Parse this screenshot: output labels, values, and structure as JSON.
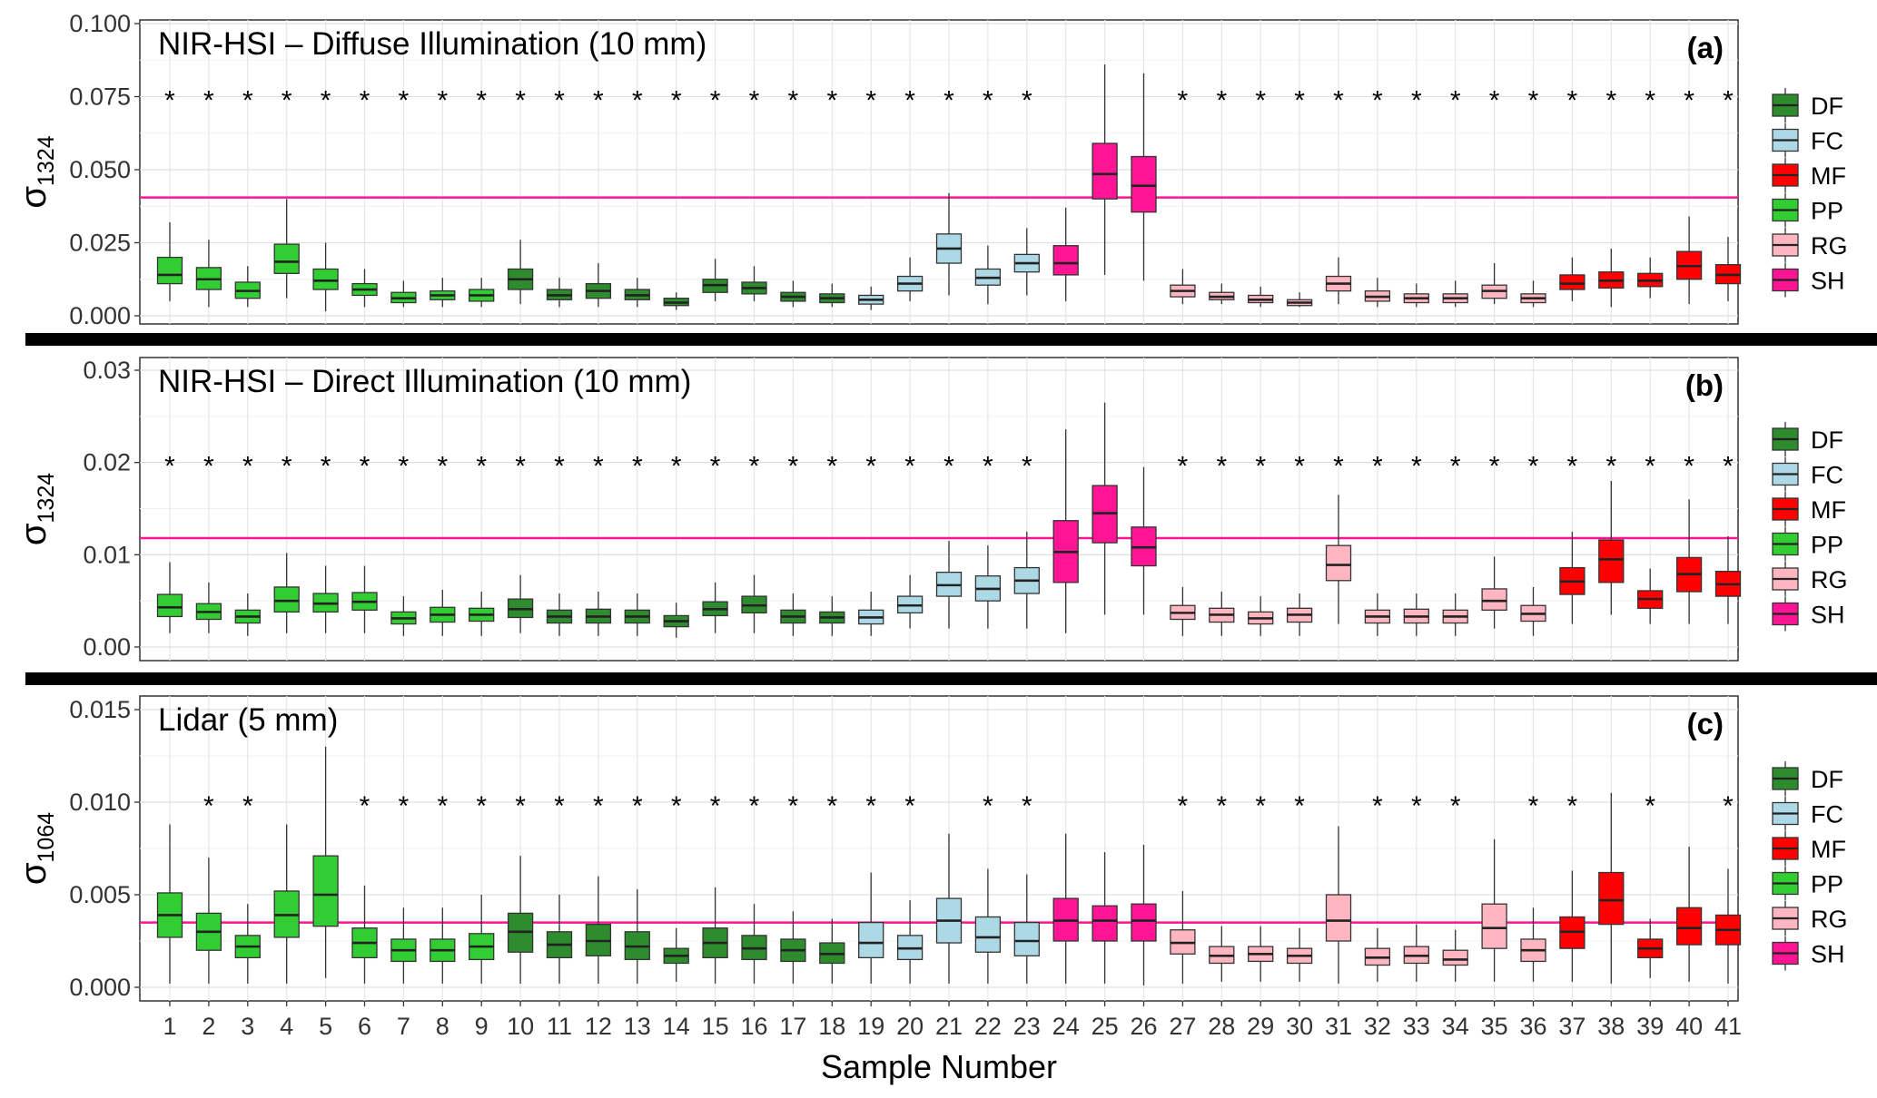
{
  "colors": {
    "DF": "#2e8b2e",
    "FC": "#add8e6",
    "MF": "#ff0000",
    "PP": "#32cd32",
    "RG": "#ffb6c1",
    "SH": "#ff1493",
    "reference_line": "#ff1493"
  },
  "chart_data": {
    "type": "boxplot",
    "xlabel": "Sample Number",
    "categories": [
      "1",
      "2",
      "3",
      "4",
      "5",
      "6",
      "7",
      "8",
      "9",
      "10",
      "11",
      "12",
      "13",
      "14",
      "15",
      "16",
      "17",
      "18",
      "19",
      "20",
      "21",
      "22",
      "23",
      "24",
      "25",
      "26",
      "27",
      "28",
      "29",
      "30",
      "31",
      "32",
      "33",
      "34",
      "35",
      "36",
      "37",
      "38",
      "39",
      "40",
      "41"
    ],
    "sample_groups": [
      "PP",
      "PP",
      "PP",
      "PP",
      "PP",
      "PP",
      "PP",
      "PP",
      "PP",
      "DF",
      "DF",
      "DF",
      "DF",
      "DF",
      "DF",
      "DF",
      "DF",
      "DF",
      "FC",
      "FC",
      "FC",
      "FC",
      "FC",
      "SH",
      "SH",
      "SH",
      "RG",
      "RG",
      "RG",
      "RG",
      "RG",
      "RG",
      "RG",
      "RG",
      "RG",
      "RG",
      "MF",
      "MF",
      "MF",
      "MF",
      "MF"
    ],
    "legend": {
      "position": "right",
      "entries": [
        "DF",
        "FC",
        "MF",
        "PP",
        "RG",
        "SH"
      ]
    },
    "grid": true,
    "panels": [
      {
        "title": "NIR-HSI – Diffuse Illumination (10 mm)",
        "letter": "(a)",
        "ylabel_base": "σ",
        "ylabel_sub": "1324",
        "ylim": [
          0,
          0.1
        ],
        "yticks": [
          "0.000",
          "0.025",
          "0.050",
          "0.075",
          "0.100"
        ],
        "reference_line": 0.0405,
        "star_level": 0.075,
        "significant": [
          "1",
          "2",
          "3",
          "4",
          "5",
          "6",
          "7",
          "8",
          "9",
          "10",
          "11",
          "12",
          "13",
          "14",
          "15",
          "16",
          "17",
          "18",
          "19",
          "20",
          "21",
          "22",
          "23",
          "27",
          "28",
          "29",
          "30",
          "31",
          "32",
          "33",
          "34",
          "35",
          "36",
          "37",
          "38",
          "39",
          "40",
          "41"
        ],
        "boxes": [
          [
            0.005,
            0.011,
            0.014,
            0.02,
            0.032
          ],
          [
            0.003,
            0.009,
            0.0125,
            0.0165,
            0.026
          ],
          [
            0.003,
            0.006,
            0.0085,
            0.0115,
            0.017
          ],
          [
            0.006,
            0.0145,
            0.0185,
            0.0245,
            0.04
          ],
          [
            0.0015,
            0.009,
            0.012,
            0.016,
            0.025
          ],
          [
            0.003,
            0.007,
            0.009,
            0.011,
            0.016
          ],
          [
            0.003,
            0.0045,
            0.006,
            0.008,
            0.012
          ],
          [
            0.003,
            0.0055,
            0.007,
            0.0085,
            0.013
          ],
          [
            0.003,
            0.005,
            0.007,
            0.009,
            0.013
          ],
          [
            0.004,
            0.009,
            0.0125,
            0.016,
            0.026
          ],
          [
            0.003,
            0.0055,
            0.007,
            0.009,
            0.013
          ],
          [
            0.003,
            0.006,
            0.0085,
            0.011,
            0.018
          ],
          [
            0.003,
            0.0055,
            0.007,
            0.009,
            0.013
          ],
          [
            0.002,
            0.0035,
            0.0045,
            0.006,
            0.008
          ],
          [
            0.005,
            0.008,
            0.0105,
            0.0125,
            0.0195
          ],
          [
            0.005,
            0.0075,
            0.0095,
            0.0115,
            0.017
          ],
          [
            0.003,
            0.005,
            0.0065,
            0.008,
            0.012
          ],
          [
            0.003,
            0.0045,
            0.006,
            0.0075,
            0.011
          ],
          [
            0.002,
            0.004,
            0.0055,
            0.007,
            0.01
          ],
          [
            0.005,
            0.0085,
            0.011,
            0.0135,
            0.02
          ],
          [
            0.007,
            0.018,
            0.023,
            0.028,
            0.042
          ],
          [
            0.004,
            0.0105,
            0.013,
            0.016,
            0.024
          ],
          [
            0.007,
            0.015,
            0.018,
            0.021,
            0.03
          ],
          [
            0.005,
            0.014,
            0.018,
            0.024,
            0.037
          ],
          [
            0.014,
            0.04,
            0.0485,
            0.059,
            0.086
          ],
          [
            0.012,
            0.0355,
            0.0445,
            0.0545,
            0.083
          ],
          [
            0.004,
            0.0065,
            0.0085,
            0.0105,
            0.016
          ],
          [
            0.004,
            0.0055,
            0.0065,
            0.008,
            0.011
          ],
          [
            0.003,
            0.0045,
            0.0055,
            0.007,
            0.01
          ],
          [
            0.003,
            0.0035,
            0.0045,
            0.0055,
            0.008
          ],
          [
            0.004,
            0.0085,
            0.011,
            0.0135,
            0.02
          ],
          [
            0.003,
            0.005,
            0.0065,
            0.0085,
            0.013
          ],
          [
            0.003,
            0.0045,
            0.006,
            0.0075,
            0.011
          ],
          [
            0.003,
            0.0045,
            0.006,
            0.0075,
            0.012
          ],
          [
            0.004,
            0.006,
            0.0085,
            0.0105,
            0.018
          ],
          [
            0.003,
            0.0045,
            0.006,
            0.0075,
            0.012
          ],
          [
            0.005,
            0.009,
            0.011,
            0.014,
            0.02
          ],
          [
            0.003,
            0.0095,
            0.012,
            0.015,
            0.023
          ],
          [
            0.006,
            0.01,
            0.012,
            0.0145,
            0.02
          ],
          [
            0.004,
            0.0125,
            0.017,
            0.022,
            0.034
          ],
          [
            0.005,
            0.011,
            0.014,
            0.0175,
            0.027
          ]
        ]
      },
      {
        "title": "NIR-HSI – Direct Illumination (10 mm)",
        "letter": "(b)",
        "ylabel_base": "σ",
        "ylabel_sub": "1324",
        "ylim": [
          -0.0003,
          0.0305
        ],
        "yticks": [
          "0.00",
          "0.01",
          "0.02",
          "0.03"
        ],
        "reference_line": 0.0118,
        "star_level": 0.02,
        "significant": [
          "1",
          "2",
          "3",
          "4",
          "5",
          "6",
          "7",
          "8",
          "9",
          "10",
          "11",
          "12",
          "13",
          "14",
          "15",
          "16",
          "17",
          "18",
          "19",
          "20",
          "21",
          "22",
          "23",
          "27",
          "28",
          "29",
          "30",
          "31",
          "32",
          "33",
          "34",
          "35",
          "36",
          "37",
          "38",
          "39",
          "40",
          "41"
        ],
        "boxes": [
          [
            0.0015,
            0.0033,
            0.0043,
            0.0057,
            0.0092
          ],
          [
            0.0015,
            0.003,
            0.0038,
            0.0047,
            0.007
          ],
          [
            0.0012,
            0.0026,
            0.0033,
            0.004,
            0.0058
          ],
          [
            0.0015,
            0.0038,
            0.005,
            0.0065,
            0.0102
          ],
          [
            0.0015,
            0.0038,
            0.0047,
            0.0058,
            0.0088
          ],
          [
            0.0015,
            0.004,
            0.0049,
            0.0059,
            0.0088
          ],
          [
            0.0012,
            0.0025,
            0.0031,
            0.0038,
            0.0055
          ],
          [
            0.0012,
            0.0027,
            0.0035,
            0.0043,
            0.0062
          ],
          [
            0.0012,
            0.0028,
            0.0035,
            0.0042,
            0.006
          ],
          [
            0.0015,
            0.0032,
            0.0041,
            0.0052,
            0.0078
          ],
          [
            0.0012,
            0.0026,
            0.0033,
            0.004,
            0.0058
          ],
          [
            0.0012,
            0.0026,
            0.0033,
            0.0041,
            0.006
          ],
          [
            0.0012,
            0.0026,
            0.0033,
            0.004,
            0.0058
          ],
          [
            0.001,
            0.0022,
            0.0028,
            0.0034,
            0.0048
          ],
          [
            0.0015,
            0.0034,
            0.0041,
            0.0049,
            0.007
          ],
          [
            0.0015,
            0.0037,
            0.0045,
            0.0055,
            0.0078
          ],
          [
            0.0012,
            0.0026,
            0.0033,
            0.004,
            0.0058
          ],
          [
            0.0012,
            0.0026,
            0.0032,
            0.0038,
            0.0055
          ],
          [
            0.0012,
            0.0025,
            0.0032,
            0.004,
            0.006
          ],
          [
            0.002,
            0.0037,
            0.0045,
            0.0055,
            0.0078
          ],
          [
            0.002,
            0.0055,
            0.0067,
            0.0081,
            0.0115
          ],
          [
            0.002,
            0.005,
            0.0063,
            0.0077,
            0.011
          ],
          [
            0.002,
            0.0058,
            0.0072,
            0.0086,
            0.0125
          ],
          [
            0.0015,
            0.007,
            0.0103,
            0.0137,
            0.0236
          ],
          [
            0.0035,
            0.0113,
            0.0145,
            0.0175,
            0.0265
          ],
          [
            0.0035,
            0.0088,
            0.0108,
            0.013,
            0.0195
          ],
          [
            0.0012,
            0.003,
            0.0037,
            0.0045,
            0.0065
          ],
          [
            0.0012,
            0.0027,
            0.0035,
            0.0042,
            0.006
          ],
          [
            0.0012,
            0.0025,
            0.0031,
            0.0038,
            0.0055
          ],
          [
            0.0012,
            0.0027,
            0.0035,
            0.0042,
            0.0058
          ],
          [
            0.0025,
            0.0072,
            0.0089,
            0.011,
            0.0165
          ],
          [
            0.0012,
            0.0026,
            0.0033,
            0.004,
            0.0058
          ],
          [
            0.0012,
            0.0026,
            0.0033,
            0.0041,
            0.0058
          ],
          [
            0.0012,
            0.0026,
            0.0033,
            0.004,
            0.0058
          ],
          [
            0.002,
            0.004,
            0.005,
            0.0063,
            0.0098
          ],
          [
            0.0012,
            0.0028,
            0.0036,
            0.0045,
            0.0065
          ],
          [
            0.0025,
            0.0057,
            0.0071,
            0.0086,
            0.0125
          ],
          [
            0.0035,
            0.007,
            0.0095,
            0.0116,
            0.018
          ],
          [
            0.0025,
            0.0042,
            0.0052,
            0.0061,
            0.0085
          ],
          [
            0.0025,
            0.006,
            0.0079,
            0.0097,
            0.016
          ],
          [
            0.0025,
            0.0055,
            0.0068,
            0.0082,
            0.012
          ]
        ]
      },
      {
        "title": "Lidar (5 mm)",
        "letter": "(c)",
        "ylabel_base": "σ",
        "ylabel_sub": "1064",
        "ylim": [
          -0.0003,
          0.0155
        ],
        "yticks": [
          "0.000",
          "0.005",
          "0.010",
          "0.015"
        ],
        "reference_line": 0.0035,
        "star_level": 0.01,
        "significant": [
          "2",
          "3",
          "6",
          "7",
          "8",
          "9",
          "10",
          "11",
          "12",
          "13",
          "14",
          "15",
          "16",
          "17",
          "18",
          "19",
          "20",
          "22",
          "23",
          "27",
          "28",
          "29",
          "30",
          "32",
          "33",
          "34",
          "36",
          "37",
          "39",
          "41"
        ],
        "boxes": [
          [
            0.0002,
            0.0027,
            0.0039,
            0.0051,
            0.0088
          ],
          [
            0.0002,
            0.002,
            0.003,
            0.004,
            0.007
          ],
          [
            0.0002,
            0.0016,
            0.0022,
            0.0028,
            0.0045
          ],
          [
            0.0002,
            0.0027,
            0.0039,
            0.0052,
            0.0088
          ],
          [
            0.0005,
            0.0033,
            0.005,
            0.0071,
            0.013
          ],
          [
            0.0002,
            0.0016,
            0.0024,
            0.0032,
            0.0055
          ],
          [
            0.0002,
            0.0014,
            0.002,
            0.0026,
            0.0043
          ],
          [
            0.0002,
            0.0014,
            0.002,
            0.0026,
            0.0043
          ],
          [
            0.0002,
            0.0015,
            0.0022,
            0.0029,
            0.005
          ],
          [
            0.0002,
            0.0019,
            0.003,
            0.004,
            0.0071
          ],
          [
            0.0002,
            0.0016,
            0.0023,
            0.003,
            0.005
          ],
          [
            0.0002,
            0.0017,
            0.0025,
            0.0034,
            0.006
          ],
          [
            0.0002,
            0.0015,
            0.0022,
            0.003,
            0.0053
          ],
          [
            0.0003,
            0.0013,
            0.0017,
            0.0021,
            0.0032
          ],
          [
            0.0002,
            0.0016,
            0.0024,
            0.0032,
            0.0054
          ],
          [
            0.0002,
            0.0015,
            0.0021,
            0.0028,
            0.0045
          ],
          [
            0.0002,
            0.0014,
            0.002,
            0.0026,
            0.0041
          ],
          [
            0.0002,
            0.0013,
            0.0018,
            0.0024,
            0.0037
          ],
          [
            0.0002,
            0.0016,
            0.0024,
            0.0035,
            0.0062
          ],
          [
            0.0002,
            0.0015,
            0.0021,
            0.0028,
            0.0047
          ],
          [
            0.0002,
            0.0024,
            0.0036,
            0.0048,
            0.0083
          ],
          [
            0.0002,
            0.0019,
            0.0027,
            0.0038,
            0.0064
          ],
          [
            0.0002,
            0.0017,
            0.0025,
            0.0035,
            0.0061
          ],
          [
            0.0002,
            0.0025,
            0.0036,
            0.0048,
            0.0083
          ],
          [
            0.0002,
            0.0025,
            0.0036,
            0.0044,
            0.0073
          ],
          [
            0.0001,
            0.0025,
            0.0036,
            0.0045,
            0.0077
          ],
          [
            0.0002,
            0.0018,
            0.0024,
            0.0031,
            0.0052
          ],
          [
            0.0003,
            0.0013,
            0.0017,
            0.0022,
            0.0033
          ],
          [
            0.0003,
            0.0014,
            0.0018,
            0.0022,
            0.0033
          ],
          [
            0.0003,
            0.0013,
            0.0017,
            0.0021,
            0.0032
          ],
          [
            0.0002,
            0.0025,
            0.0036,
            0.005,
            0.0087
          ],
          [
            0.0003,
            0.0012,
            0.0016,
            0.0021,
            0.0032
          ],
          [
            0.0003,
            0.0013,
            0.0017,
            0.0022,
            0.0034
          ],
          [
            0.0003,
            0.0012,
            0.0015,
            0.002,
            0.0031
          ],
          [
            0.0003,
            0.0021,
            0.0032,
            0.0045,
            0.008
          ],
          [
            0.0003,
            0.0014,
            0.002,
            0.0026,
            0.0043
          ],
          [
            0.0003,
            0.0021,
            0.003,
            0.0038,
            0.0063
          ],
          [
            0.0002,
            0.0034,
            0.0047,
            0.0062,
            0.0105
          ],
          [
            0.0005,
            0.0016,
            0.0021,
            0.0026,
            0.0037
          ],
          [
            0.0003,
            0.0023,
            0.0032,
            0.0043,
            0.0076
          ],
          [
            0.0002,
            0.0023,
            0.0031,
            0.0039,
            0.0064
          ]
        ]
      }
    ]
  }
}
